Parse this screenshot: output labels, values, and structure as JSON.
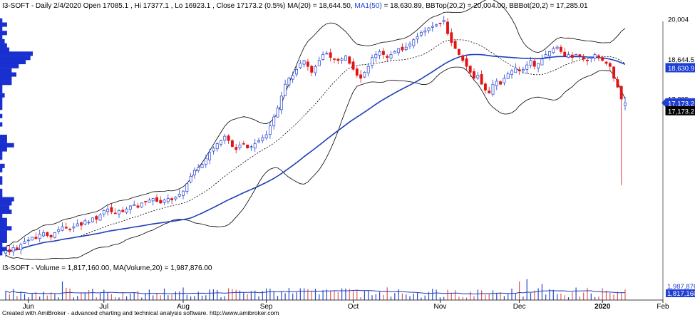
{
  "header": {
    "symbol": "I3-SOFT",
    "period": "Daily",
    "date": "2/4/2020",
    "open": "17085.1",
    "high": "17377.1",
    "low": "16923.1",
    "close": "17173.2",
    "change_pct": "(0.5%)",
    "ma_label": "MA(20) = 18,644.50,",
    "ma1_label": "MA1(50)",
    "ma1_value": "= 18,630.89,",
    "bbtop_label": "BBTop(20,2) = 20,004.00,",
    "bbbot_label": "BBBot(20,2) = 17,285.01"
  },
  "volume_header": {
    "label": "I3-SOFT - Volume = 1,817,160.00,",
    "ma_label": "MA(Volume,20) = 1,987,876.00"
  },
  "footer": {
    "text": "Created with AmiBroker - advanced charting and technical analysis software. http://www.amibroker.com"
  },
  "colors": {
    "up": "#1f3fd4",
    "down": "#e11515",
    "ma50": "#1f3fb8",
    "band": "#000000",
    "ma20": "#000000",
    "volume_up": "#2c48c8",
    "volume_down": "#e05a5a",
    "profile": "#1a2fd0"
  },
  "price_labels": [
    {
      "text": "20,004",
      "value": 20004,
      "style": "white"
    },
    {
      "text": "18,644.5",
      "value": 18644.5,
      "style": "white"
    },
    {
      "text": "18,630.9",
      "value": 18630.9,
      "style": "blue"
    },
    {
      "text": "17,285",
      "value": 17285,
      "style": "white"
    },
    {
      "text": "17,173.2",
      "value": 17173.2,
      "style": "blue-arrow"
    },
    {
      "text": "17,173.2",
      "value": 17173.2,
      "style": "black"
    }
  ],
  "volume_labels": [
    {
      "text": "1,987,876",
      "style": "blue-text"
    },
    {
      "text": "1,817,160",
      "style": "blue"
    }
  ],
  "chart_data": {
    "type": "candlestick",
    "months": [
      "Jun",
      "Jul",
      "Aug",
      "Sep",
      "Oct",
      "Nov",
      "Dec",
      "2020",
      "Feb"
    ],
    "month_start_index": [
      6,
      26,
      47,
      69,
      92,
      115,
      136,
      158,
      174
    ],
    "last_bar": {
      "open": 17085.1,
      "high": 17377.1,
      "low": 16923.1,
      "close": 17173.2
    },
    "series": [
      {
        "name": "Close",
        "key": "close"
      },
      {
        "name": "MA(20)",
        "key": "ma20"
      },
      {
        "name": "MA1(50)",
        "key": "ma50"
      },
      {
        "name": "BBTop(20,2)",
        "key": "bbtop"
      },
      {
        "name": "BBBot(20,2)",
        "key": "bbbot"
      },
      {
        "name": "Volume",
        "key": "volume"
      }
    ],
    "close": [
      12200,
      12150,
      12300,
      12250,
      12400,
      12500,
      12550,
      12650,
      12600,
      12750,
      12800,
      12700,
      12650,
      12800,
      12900,
      13000,
      12950,
      12900,
      13000,
      13100,
      13050,
      13200,
      13150,
      13300,
      13250,
      13400,
      13550,
      13600,
      13500,
      13450,
      13550,
      13500,
      13600,
      13700,
      13750,
      13650,
      13800,
      13850,
      13900,
      13950,
      13850,
      13800,
      13900,
      13950,
      13900,
      14000,
      14100,
      14200,
      14450,
      14700,
      14900,
      15000,
      15100,
      15300,
      15500,
      15650,
      15800,
      15900,
      16050,
      15900,
      15700,
      15600,
      15750,
      15800,
      15650,
      15700,
      15800,
      15900,
      16000,
      16100,
      16400,
      16700,
      17000,
      17400,
      17800,
      18000,
      18100,
      18300,
      18500,
      18600,
      18400,
      18200,
      18400,
      18600,
      18800,
      18850,
      18700,
      18650,
      18600,
      18650,
      18750,
      18500,
      18300,
      18100,
      18000,
      18200,
      18400,
      18700,
      18800,
      18900,
      18800,
      18700,
      18800,
      18900,
      19000,
      18950,
      19050,
      19150,
      19300,
      19400,
      19550,
      19600,
      19700,
      19750,
      19800,
      19850,
      19950,
      19500,
      19200,
      19000,
      18800,
      18600,
      18400,
      18200,
      18000,
      18100,
      17800,
      17600,
      17500,
      17800,
      17900,
      17800,
      18000,
      18150,
      18250,
      18350,
      18250,
      18300,
      18450,
      18600,
      18400,
      18500,
      18650,
      18800,
      18900,
      19000,
      19050,
      18900,
      18750,
      18800,
      18700,
      18800,
      18750,
      18650,
      18600,
      18700,
      18800,
      18700,
      18600,
      18500,
      18400,
      18000,
      17700,
      17300,
      17173.2
    ],
    "ylim": [
      11900,
      20300
    ],
    "volume_ylim": [
      0,
      5000000
    ]
  }
}
